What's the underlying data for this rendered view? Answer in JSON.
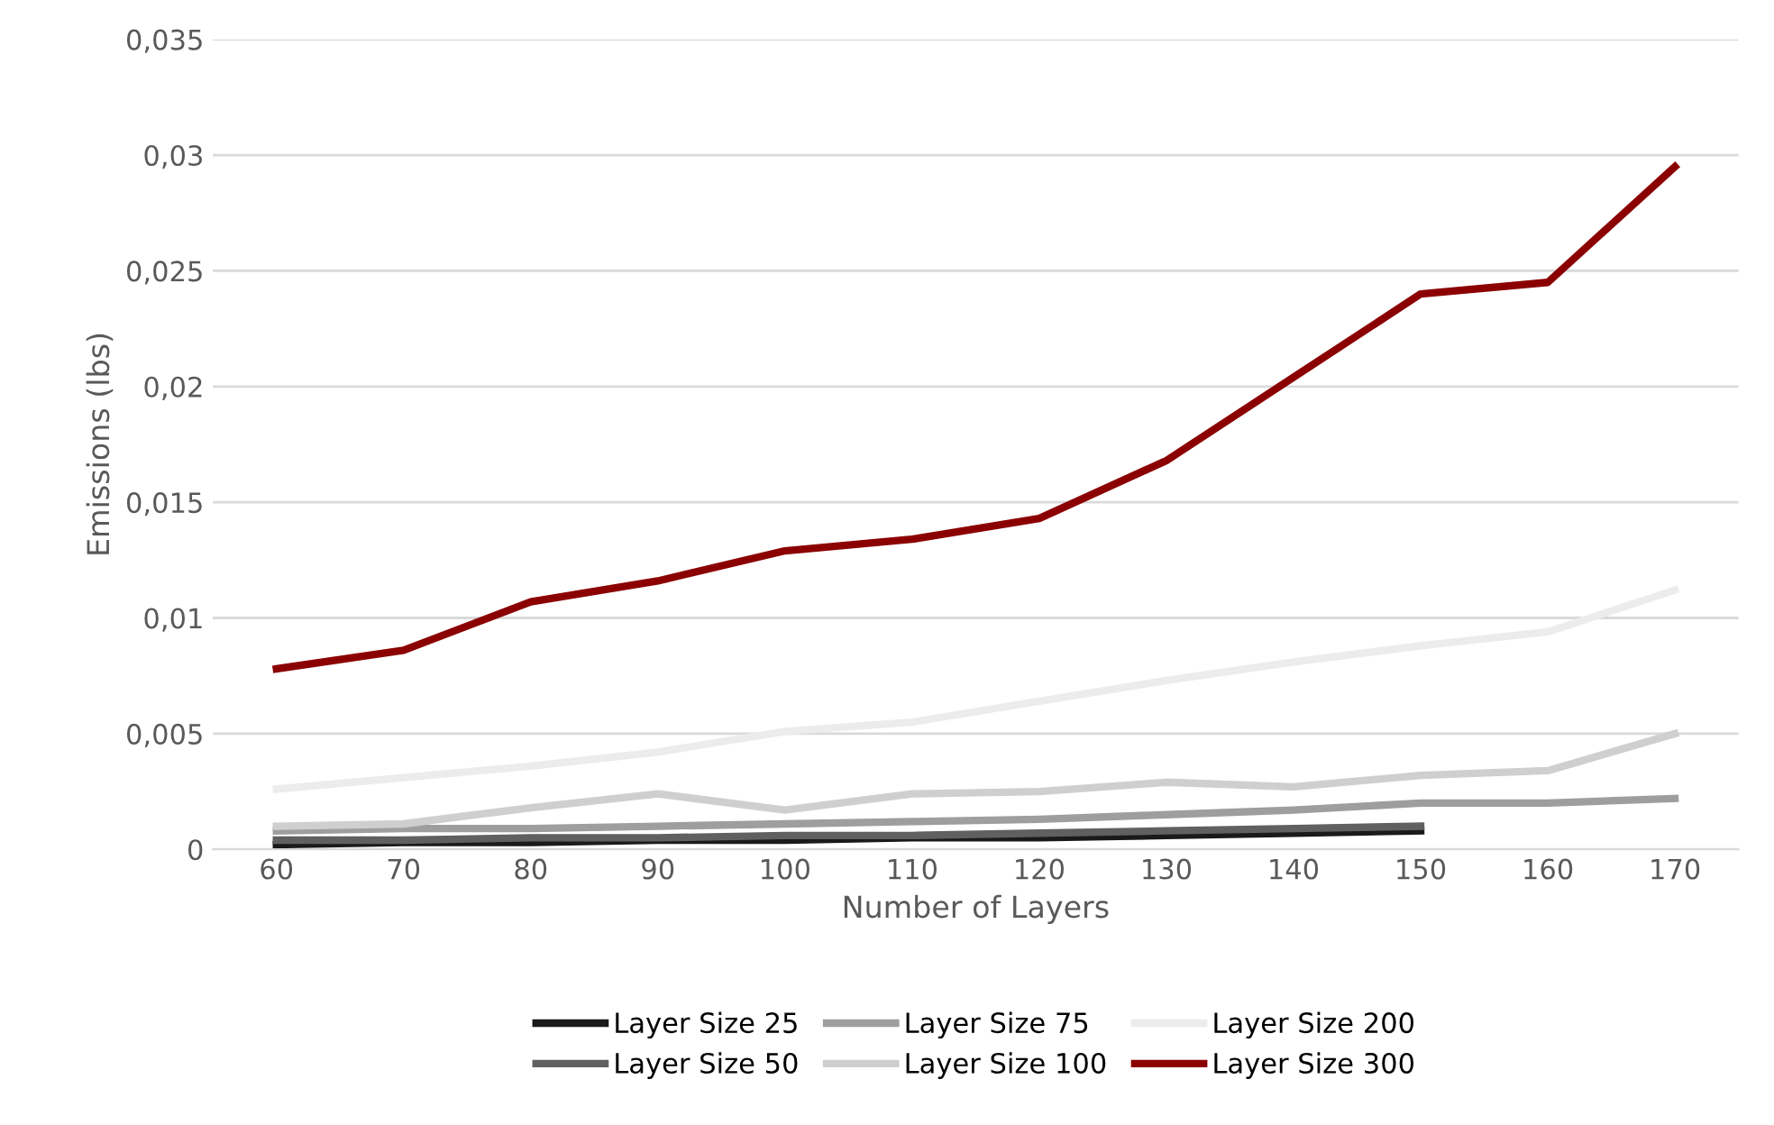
{
  "chart_data": {
    "type": "line",
    "xlabel": "Number of Layers",
    "ylabel": "Emissions (lbs)",
    "categories": [
      "60",
      "70",
      "80",
      "90",
      "100",
      "110",
      "120",
      "130",
      "140",
      "150",
      "160",
      "170"
    ],
    "series": [
      {
        "name": "Layer Size 25",
        "color": "#1a1a1a",
        "values": [
          0.0002,
          0.0003,
          0.0003,
          0.0004,
          0.0004,
          0.0005,
          0.0005,
          0.0006,
          0.0007,
          0.0008,
          null,
          null
        ]
      },
      {
        "name": "Layer Size 50",
        "color": "#606060",
        "values": [
          0.0004,
          0.0004,
          0.0005,
          0.0005,
          0.0006,
          0.0006,
          0.0007,
          0.0008,
          0.0009,
          0.001,
          null,
          null
        ]
      },
      {
        "name": "Layer Size 75",
        "color": "#9e9e9e",
        "values": [
          0.0008,
          0.0009,
          0.0009,
          0.001,
          0.0011,
          0.0012,
          0.0013,
          0.0015,
          0.0017,
          0.002,
          0.002,
          0.0022
        ]
      },
      {
        "name": "Layer Size 100",
        "color": "#cfcfcf",
        "values": [
          0.001,
          0.0011,
          0.0018,
          0.0024,
          0.0017,
          0.0024,
          0.0025,
          0.0029,
          0.0027,
          0.0032,
          0.0034,
          0.005
        ]
      },
      {
        "name": "Layer Size 200",
        "color": "#ececec",
        "values": [
          0.0026,
          0.0031,
          0.0036,
          0.0042,
          0.0051,
          0.0055,
          0.0064,
          0.0073,
          0.0081,
          0.0088,
          0.0094,
          0.0112
        ]
      },
      {
        "name": "Layer Size 300",
        "color": "#8b0000",
        "values": [
          0.0078,
          0.0086,
          0.0107,
          0.0116,
          0.0129,
          0.0134,
          0.0143,
          0.0168,
          0.0204,
          0.024,
          0.0245,
          0.0295
        ]
      }
    ],
    "ylim": [
      0,
      0.035
    ],
    "yticks": [
      0,
      {
        "value": 0.005,
        "label": "0,005"
      },
      {
        "value": 0.01,
        "label": "0,01"
      },
      {
        "value": 0.015,
        "label": "0,015"
      },
      {
        "value": 0.02,
        "label": "0,02"
      },
      {
        "value": 0.025,
        "label": "0,025"
      },
      {
        "value": 0.03,
        "label": "0,03"
      },
      {
        "value": 0.035,
        "label": "0,035"
      }
    ],
    "grid": "y",
    "legend": "bottom",
    "marker": "none",
    "line_style": "solid"
  }
}
